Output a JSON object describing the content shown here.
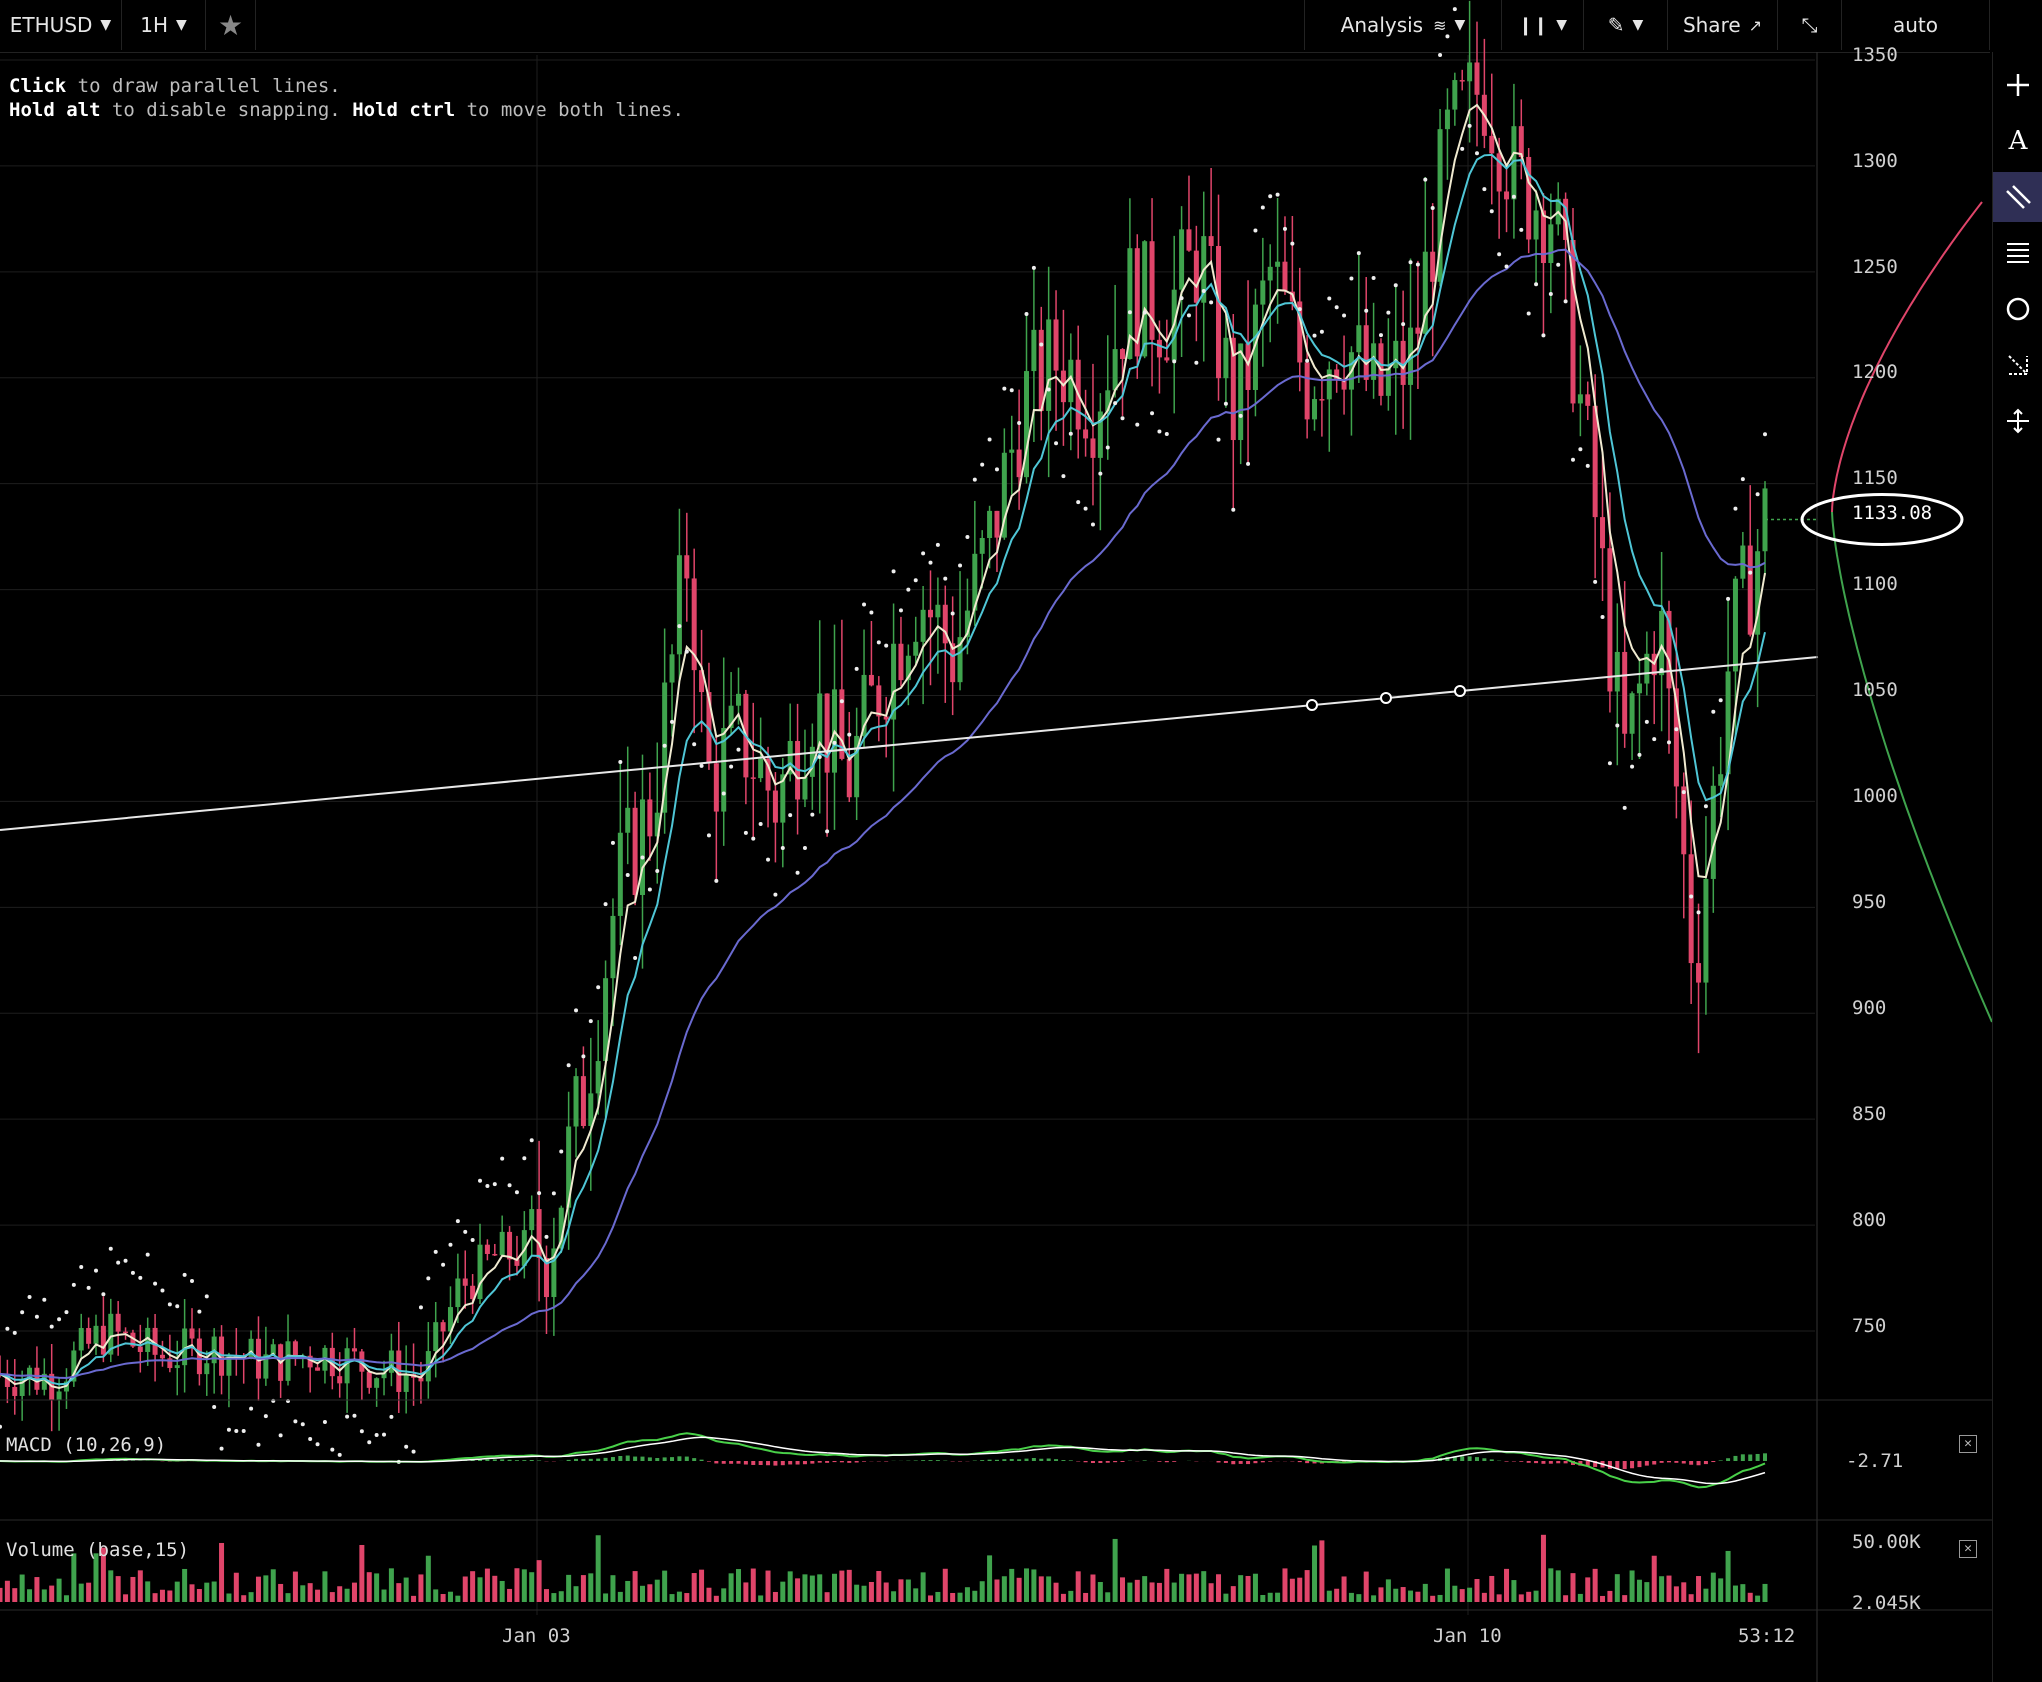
{
  "toolbar": {
    "symbol": "ETHUSD",
    "interval": "1H",
    "analysis_label": "Analysis",
    "share_label": "Share",
    "scale_mode": "auto"
  },
  "hint": {
    "line1_a": "Click",
    "line1_b": " to draw parallel lines.",
    "line2_a": "Hold alt",
    "line2_b": " to disable snapping. ",
    "line2_c": "Hold ctrl",
    "line2_d": " to move both lines."
  },
  "price_axis": {
    "ticks": [
      "1350",
      "1300",
      "1250",
      "1200",
      "1150",
      "1100",
      "1050",
      "1000",
      "950",
      "900",
      "850",
      "800",
      "750"
    ],
    "current_price": "1133.08"
  },
  "macd": {
    "label": "MACD (10,26,9)",
    "value": "-2.71"
  },
  "volume": {
    "label": "Volume (base,15)",
    "tick_high": "50.00K",
    "tick_low": "2.045K"
  },
  "time_axis": {
    "labels": [
      "Jan 03",
      "Jan 10"
    ],
    "countdown": "53:12"
  },
  "colors": {
    "up": "#3fa34d",
    "down": "#e0456a",
    "ema_fast": "#f0ead0",
    "ema_mid": "#4fc6d6",
    "ema_slow": "#6a6ad0"
  },
  "chart_data": {
    "type": "candlestick",
    "symbol": "ETHUSD",
    "interval": "1H",
    "ylim": [
      720,
      1350
    ],
    "close_path": [
      [
        0,
        730
      ],
      [
        0.03,
        728
      ],
      [
        0.06,
        750
      ],
      [
        0.09,
        738
      ],
      [
        0.12,
        742
      ],
      [
        0.15,
        735
      ],
      [
        0.18,
        740
      ],
      [
        0.21,
        733
      ],
      [
        0.24,
        728
      ],
      [
        0.26,
        770
      ],
      [
        0.28,
        785
      ],
      [
        0.31,
        790
      ],
      [
        0.33,
        860
      ],
      [
        0.35,
        960
      ],
      [
        0.37,
        1000
      ],
      [
        0.39,
        1120
      ],
      [
        0.4,
        1010
      ],
      [
        0.42,
        1030
      ],
      [
        0.44,
        1000
      ],
      [
        0.46,
        1050
      ],
      [
        0.48,
        1010
      ],
      [
        0.5,
        1060
      ],
      [
        0.52,
        1100
      ],
      [
        0.54,
        1070
      ],
      [
        0.56,
        1120
      ],
      [
        0.58,
        1190
      ],
      [
        0.6,
        1210
      ],
      [
        0.62,
        1190
      ],
      [
        0.64,
        1240
      ],
      [
        0.66,
        1230
      ],
      [
        0.68,
        1260
      ],
      [
        0.7,
        1180
      ],
      [
        0.72,
        1250
      ],
      [
        0.74,
        1200
      ],
      [
        0.76,
        1220
      ],
      [
        0.78,
        1190
      ],
      [
        0.8,
        1210
      ],
      [
        0.82,
        1310
      ],
      [
        0.84,
        1340
      ],
      [
        0.86,
        1290
      ],
      [
        0.88,
        1280
      ],
      [
        0.9,
        1160
      ],
      [
        0.92,
        1020
      ],
      [
        0.94,
        1090
      ],
      [
        0.96,
        920
      ],
      [
        0.98,
        1070
      ],
      [
        1.0,
        1133
      ]
    ]
  }
}
